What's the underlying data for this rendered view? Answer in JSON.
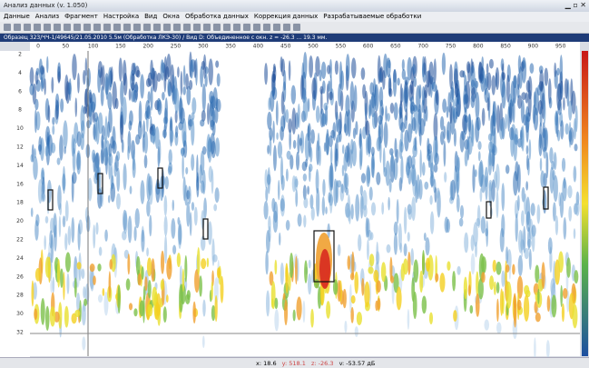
{
  "window": {
    "title": "Анализ данных (v. 1.050)"
  },
  "menu": [
    "Данные",
    "Анализ",
    "Фрагмент",
    "Настройка",
    "Вид",
    "Окна",
    "Обработка данных",
    "Коррекция данных",
    "Разрабатываемые обработки"
  ],
  "info_line": "Образец 323/ЧЧ-1/49645/21.05.2010 5.5м (Обработка ЛКЭ-30) / Вид D: Объединенное с окн. z = -26.3 ... 19.3 мм.",
  "axis": {
    "top_ticks": [
      0,
      50,
      100,
      150,
      200,
      250,
      300,
      350,
      400,
      450,
      500,
      550,
      600,
      650,
      700,
      750,
      800,
      850,
      900,
      950
    ],
    "left_ticks": [
      2,
      4,
      6,
      8,
      10,
      12,
      14,
      16,
      18,
      20,
      22,
      24,
      26,
      28,
      30,
      32
    ]
  },
  "status": {
    "x": "x: 18.6",
    "y": "y: 518.1",
    "z": "z: -26.3",
    "v": "v: -53.57 дБ"
  }
}
